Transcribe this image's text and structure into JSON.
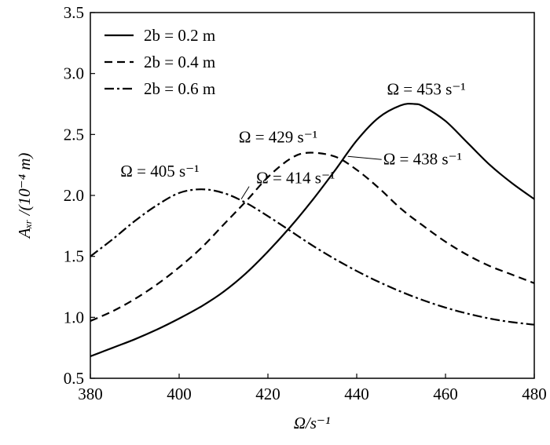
{
  "chart_data": {
    "type": "line",
    "xlabel": "Ω/s⁻¹",
    "ylabel": "Aₓᵣ /(10⁻⁴ m)",
    "xlim": [
      380,
      480
    ],
    "ylim": [
      0.5,
      3.5
    ],
    "x_ticks": [
      "380",
      "400",
      "420",
      "440",
      "460",
      "480"
    ],
    "y_ticks": [
      "0.5",
      "1.0",
      "1.5",
      "2.0",
      "2.5",
      "3.0",
      "3.5"
    ],
    "grid": false,
    "legend_position": "top-left",
    "series": [
      {
        "name": "2b = 0.2 m",
        "line_style": "solid",
        "x": [
          380,
          385,
          390,
          395,
          400,
          405,
          410,
          415,
          420,
          425,
          430,
          435,
          440,
          445,
          450,
          453,
          455,
          460,
          465,
          470,
          475,
          480
        ],
        "y": [
          0.68,
          0.75,
          0.82,
          0.9,
          0.99,
          1.09,
          1.21,
          1.36,
          1.54,
          1.74,
          1.96,
          2.2,
          2.45,
          2.64,
          2.74,
          2.75,
          2.73,
          2.61,
          2.43,
          2.25,
          2.1,
          1.97
        ]
      },
      {
        "name": "2b = 0.4 m",
        "line_style": "dashed",
        "x": [
          380,
          385,
          390,
          395,
          400,
          405,
          410,
          415,
          420,
          425,
          429,
          435,
          440,
          445,
          450,
          455,
          460,
          465,
          470,
          475,
          480
        ],
        "y": [
          0.97,
          1.05,
          1.15,
          1.27,
          1.41,
          1.57,
          1.76,
          1.95,
          2.15,
          2.3,
          2.35,
          2.32,
          2.21,
          2.06,
          1.89,
          1.75,
          1.62,
          1.51,
          1.42,
          1.35,
          1.28
        ]
      },
      {
        "name": "2b = 0.6 m",
        "line_style": "dash-dot",
        "x": [
          380,
          385,
          390,
          395,
          400,
          405,
          410,
          415,
          420,
          425,
          430,
          435,
          440,
          445,
          450,
          455,
          460,
          465,
          470,
          475,
          480
        ],
        "y": [
          1.5,
          1.64,
          1.79,
          1.92,
          2.02,
          2.05,
          2.02,
          1.94,
          1.83,
          1.71,
          1.59,
          1.48,
          1.38,
          1.29,
          1.21,
          1.14,
          1.08,
          1.03,
          0.99,
          0.96,
          0.94
        ]
      }
    ],
    "annotations": [
      {
        "text": "Ω = 453 s⁻¹",
        "x": 453,
        "y": 2.75,
        "leader": false
      },
      {
        "text": "Ω = 429 s⁻¹",
        "x": 429,
        "y": 2.35,
        "leader": false
      },
      {
        "text": "Ω = 438 s⁻¹",
        "x": 438,
        "y": 2.32,
        "leader": true
      },
      {
        "text": "Ω = 405 s⁻¹",
        "x": 405,
        "y": 2.05,
        "leader": false
      },
      {
        "text": "Ω = 414 s⁻¹",
        "x": 414,
        "y": 1.97,
        "leader": true
      }
    ]
  }
}
